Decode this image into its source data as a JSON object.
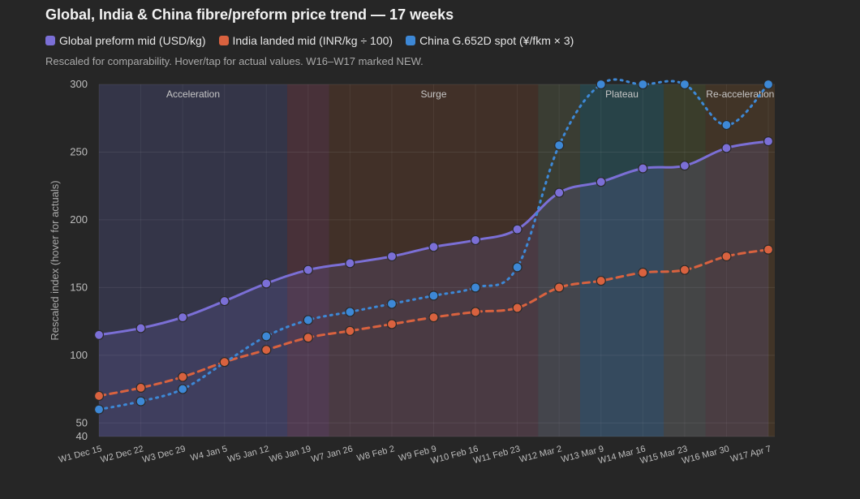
{
  "chart_data": {
    "type": "line",
    "title": "Global, India & China fibre/preform price trend — 17 weeks",
    "subtitle": "Rescaled for comparability. Hover/tap for actual values. W16–W17 marked NEW.",
    "ylabel": "Rescaled index (hover for actuals)",
    "xlabel": "",
    "ylim": [
      40,
      300
    ],
    "yticks": [
      40,
      50,
      100,
      150,
      200,
      250,
      300
    ],
    "categories": [
      "W1 Dec 15",
      "W2 Dec 22",
      "W3 Dec 29",
      "W4 Jan 5",
      "W5 Jan 12",
      "W6 Jan 19",
      "W7 Jan 26",
      "W8 Feb 2",
      "W9 Feb 9",
      "W10 Feb 16",
      "W11 Feb 23",
      "W12 Mar 2",
      "W13 Mar 9",
      "W14 Mar 16",
      "W15 Mar 23",
      "W16 Mar 30",
      "W17 Apr 7"
    ],
    "series": [
      {
        "name": "Global preform mid (USD/kg)",
        "color": "#7b6fd6",
        "style": "solid",
        "fill": true,
        "values": [
          115,
          120,
          128,
          140,
          153,
          163,
          168,
          173,
          180,
          185,
          193,
          220,
          228,
          238,
          240,
          253,
          258
        ]
      },
      {
        "name": "India landed mid (INR/kg ÷ 100)",
        "color": "#d9623f",
        "style": "dashed",
        "fill": false,
        "values": [
          70,
          76,
          84,
          95,
          104,
          113,
          118,
          123,
          128,
          132,
          135,
          150,
          155,
          161,
          163,
          173,
          178
        ]
      },
      {
        "name": "China G.652D spot (¥/fkm × 3)",
        "color": "#3d88d6",
        "style": "dotted",
        "fill": false,
        "values": [
          60,
          66,
          75,
          null,
          114,
          126,
          132,
          138,
          144,
          150,
          165,
          255,
          300,
          300,
          300,
          270,
          300
        ]
      }
    ],
    "phases": [
      {
        "label": "Acceleration",
        "start": 0,
        "end": 4.5,
        "color": "#5b5fa0"
      },
      {
        "label": "",
        "start": 4.5,
        "end": 5.5,
        "color": "#a0506a"
      },
      {
        "label": "Surge",
        "start": 5.5,
        "end": 10.5,
        "color": "#8a4a2f"
      },
      {
        "label": "",
        "start": 10.5,
        "end": 11.5,
        "color": "#6e7a55"
      },
      {
        "label": "Plateau",
        "start": 11.5,
        "end": 13.5,
        "color": "#2f8fa0"
      },
      {
        "label": "",
        "start": 13.5,
        "end": 14.5,
        "color": "#6f7a3a"
      },
      {
        "label": "Re-acceleration",
        "start": 14.5,
        "end": 16.0,
        "color": "#8a5a2a"
      }
    ],
    "grid": true,
    "legend_position": "top-left"
  }
}
